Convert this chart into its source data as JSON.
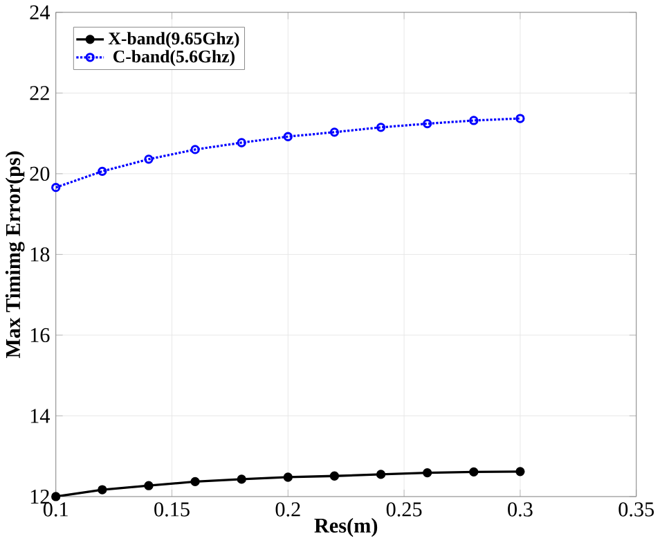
{
  "chart_data": {
    "type": "line",
    "xlabel": "Res(m)",
    "ylabel": "Max Timimg Error(ps)",
    "x": [
      0.1,
      0.12,
      0.14,
      0.16,
      0.18,
      0.2,
      0.22,
      0.24,
      0.26,
      0.28,
      0.3
    ],
    "series": [
      {
        "name": "X-band(9.65Ghz)",
        "color": "#000000",
        "line_style": "solid",
        "values": [
          12.0,
          12.17,
          12.27,
          12.37,
          12.43,
          12.48,
          12.51,
          12.55,
          12.59,
          12.61,
          12.62
        ]
      },
      {
        "name": "C-band(5.6Ghz)",
        "color": "#0000ff",
        "line_style": "dotted",
        "values": [
          19.66,
          20.06,
          20.36,
          20.6,
          20.77,
          20.92,
          21.03,
          21.15,
          21.24,
          21.32,
          21.37
        ]
      }
    ],
    "xlim": [
      0.1,
      0.35
    ],
    "xticks": [
      0.1,
      0.15,
      0.2,
      0.25,
      0.3,
      0.35
    ],
    "ylim": [
      12,
      24
    ],
    "yticks": [
      12,
      14,
      16,
      18,
      20,
      22,
      24
    ],
    "grid": true,
    "legend": "top left",
    "marker": "circle"
  }
}
